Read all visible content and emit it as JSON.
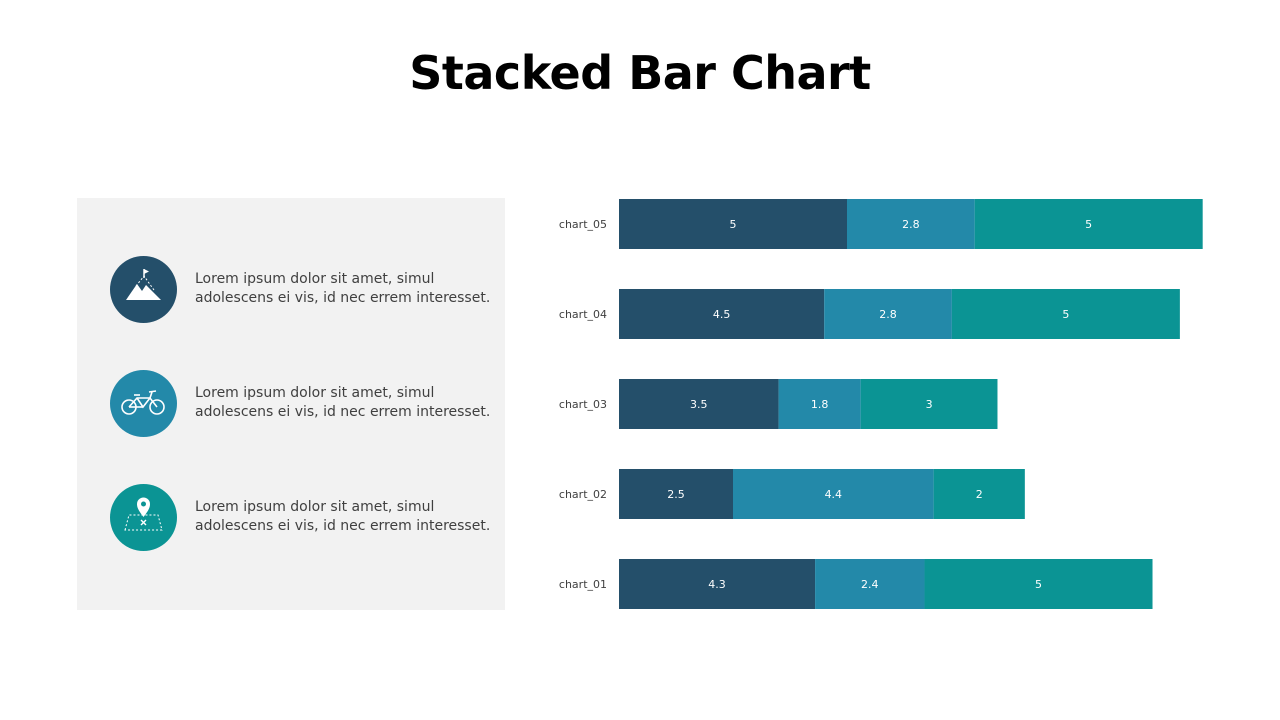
{
  "title": "Stacked Bar Chart",
  "colors": {
    "series1": "#244f6a",
    "series2": "#2389a9",
    "series3": "#0b9494",
    "panel_bg": "#f2f2f2",
    "bar_label": "#ffffff",
    "category_label": "#404040"
  },
  "items": [
    {
      "icon": "mountain-flag-icon",
      "color": "#244f6a",
      "line1": "Lorem ipsum dolor sit amet, simul",
      "line2": "adolescens ei vis, id nec errem  interesset."
    },
    {
      "icon": "bicycle-icon",
      "color": "#2389a9",
      "line1": "Lorem ipsum dolor sit amet, simul",
      "line2": "adolescens ei vis, id nec errem  interesset."
    },
    {
      "icon": "map-pin-icon",
      "color": "#0b9494",
      "line1": "Lorem ipsum dolor sit amet, simul",
      "line2": "adolescens ei vis, id nec errem  interesset."
    }
  ],
  "chart_data": {
    "type": "bar",
    "orientation": "horizontal",
    "stacked": true,
    "categories": [
      "chart_05",
      "chart_04",
      "chart_03",
      "chart_02",
      "chart_01"
    ],
    "series": [
      {
        "values": [
          5,
          4.5,
          3.5,
          2.5,
          4.3
        ],
        "color": "#244f6a"
      },
      {
        "values": [
          2.8,
          2.8,
          1.8,
          4.4,
          2.4
        ],
        "color": "#2389a9"
      },
      {
        "values": [
          5,
          5,
          3,
          2,
          5
        ],
        "color": "#0b9494"
      }
    ],
    "xlim": [
      0,
      12.8
    ],
    "grid": false,
    "legend": "none"
  }
}
